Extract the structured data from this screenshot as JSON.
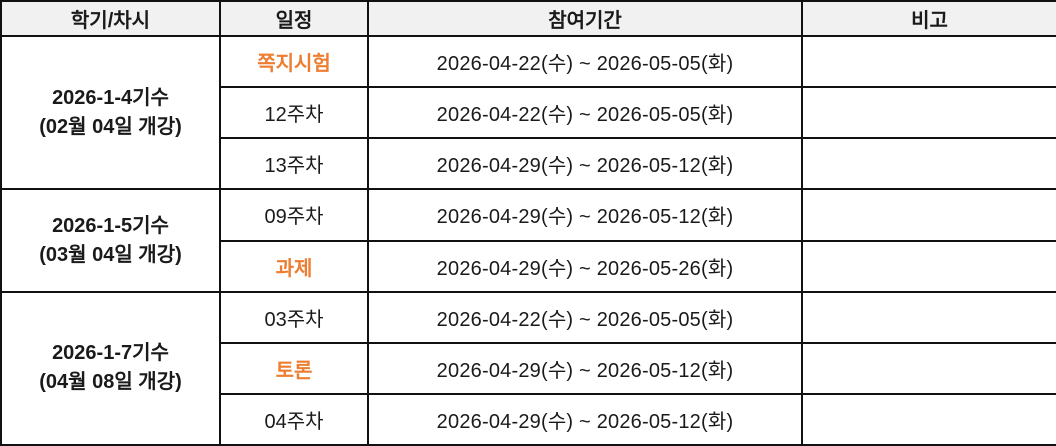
{
  "colors": {
    "highlight_text": "#ED7D31",
    "header_bg": "#f1f1f1",
    "border": "#111111",
    "text": "#1a1a1a"
  },
  "table": {
    "columns": [
      {
        "label": "학기/차시"
      },
      {
        "label": "일정"
      },
      {
        "label": "참여기간"
      },
      {
        "label": "비고"
      }
    ],
    "groups": [
      {
        "semester": "2026-1-4기수",
        "start": "(02월 04일 개강)",
        "rows": [
          {
            "schedule": "쪽지시험",
            "highlight": true,
            "period": "2026-04-22(수) ~ 2026-05-05(화)",
            "note": ""
          },
          {
            "schedule": "12주차",
            "highlight": false,
            "period": "2026-04-22(수) ~ 2026-05-05(화)",
            "note": ""
          },
          {
            "schedule": "13주차",
            "highlight": false,
            "period": "2026-04-29(수) ~ 2026-05-12(화)",
            "note": ""
          }
        ]
      },
      {
        "semester": "2026-1-5기수",
        "start": "(03월 04일 개강)",
        "rows": [
          {
            "schedule": "09주차",
            "highlight": false,
            "period": "2026-04-29(수) ~ 2026-05-12(화)",
            "note": ""
          },
          {
            "schedule": "과제",
            "highlight": true,
            "period": "2026-04-29(수) ~ 2026-05-26(화)",
            "note": ""
          }
        ]
      },
      {
        "semester": "2026-1-7기수",
        "start": "(04월 08일 개강)",
        "rows": [
          {
            "schedule": "03주차",
            "highlight": false,
            "period": "2026-04-22(수) ~ 2026-05-05(화)",
            "note": ""
          },
          {
            "schedule": "토론",
            "highlight": true,
            "period": "2026-04-29(수) ~ 2026-05-12(화)",
            "note": ""
          },
          {
            "schedule": "04주차",
            "highlight": false,
            "period": "2026-04-29(수) ~ 2026-05-12(화)",
            "note": ""
          }
        ]
      }
    ]
  }
}
